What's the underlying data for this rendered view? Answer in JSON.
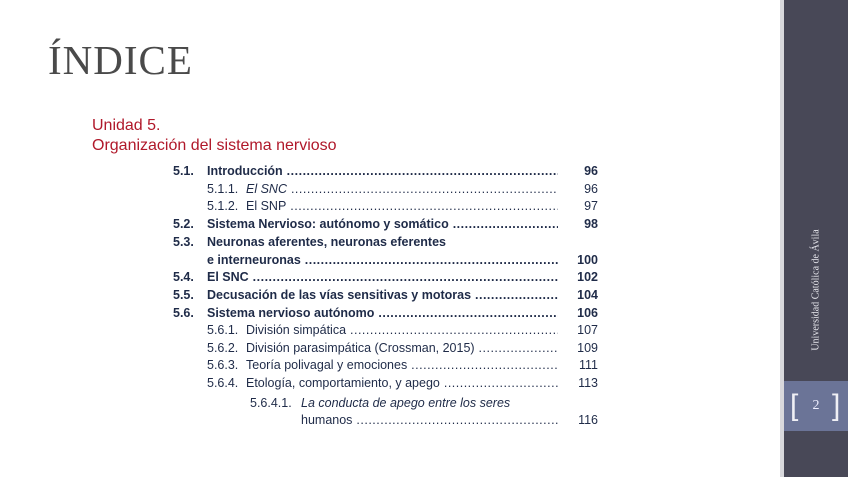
{
  "title": "ÍNDICE",
  "unit": {
    "line1": "Unidad 5.",
    "line2": "Organización del sistema nervioso"
  },
  "toc": [
    {
      "num": "5.1.",
      "text": "Introducción",
      "page": "96"
    },
    {
      "num": "5.1.1.",
      "text": "El SNC",
      "page": "96"
    },
    {
      "num": "5.1.2.",
      "text": "El SNP",
      "page": "97"
    },
    {
      "num": "5.2.",
      "text": "Sistema Nervioso: autónomo y somático",
      "page": "98"
    },
    {
      "num": "5.3.",
      "text": "Neuronas aferentes, neuronas eferentes",
      "text2": "e interneuronas",
      "page": "100"
    },
    {
      "num": "5.4.",
      "text": "El SNC",
      "page": "102"
    },
    {
      "num": "5.5.",
      "text": "Decusación de las vías sensitivas y motoras",
      "page": "104"
    },
    {
      "num": "5.6.",
      "text": "Sistema nervioso autónomo",
      "page": "106"
    },
    {
      "num": "5.6.1.",
      "text": "División simpática",
      "page": "107"
    },
    {
      "num": "5.6.2.",
      "text": "División parasimpática (Crossman, 2015)",
      "page": "109"
    },
    {
      "num": "5.6.3.",
      "text": "Teoría polivagal y emociones",
      "page": "111"
    },
    {
      "num": "5.6.4.",
      "text": "Etología, comportamiento, y apego",
      "page": "113"
    },
    {
      "num": "5.6.4.1.",
      "text": "La conducta de apego entre los seres",
      "text2": "humanos",
      "page": "116"
    }
  ],
  "sidebar": {
    "institution": "Universidad Católica de Ávila",
    "slide_number": "2"
  }
}
